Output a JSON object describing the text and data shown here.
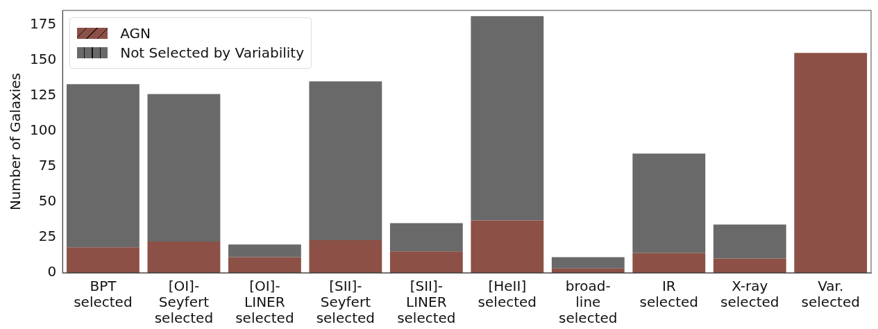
{
  "chart_data": {
    "type": "bar",
    "stacked": true,
    "ylabel": "Number of Galaxies",
    "categories": [
      "BPT\nselected",
      "[OI]-\nSeyfert\nselected",
      "[OI]-\nLINER\nselected",
      "[SII]-\nSeyfert\nselected",
      "[SII]-\nLINER\nselected",
      "[HeII]\nselected",
      "broad-\nline\nselected",
      "IR\nselected",
      "X-ray\nselected",
      "Var.\nselected"
    ],
    "series": [
      {
        "name": "AGN",
        "color": "#8c5046",
        "values": [
          18,
          22,
          11,
          23,
          15,
          37,
          3,
          14,
          10,
          155
        ]
      },
      {
        "name": "Not Selected by Variability",
        "color": "#696969",
        "values": [
          115,
          104,
          9,
          112,
          20,
          144,
          8,
          70,
          24,
          0
        ]
      }
    ],
    "ylim": [
      0,
      185
    ],
    "yticks": [
      0,
      25,
      50,
      75,
      100,
      125,
      150,
      175
    ],
    "grid": false,
    "legend": "top left"
  }
}
